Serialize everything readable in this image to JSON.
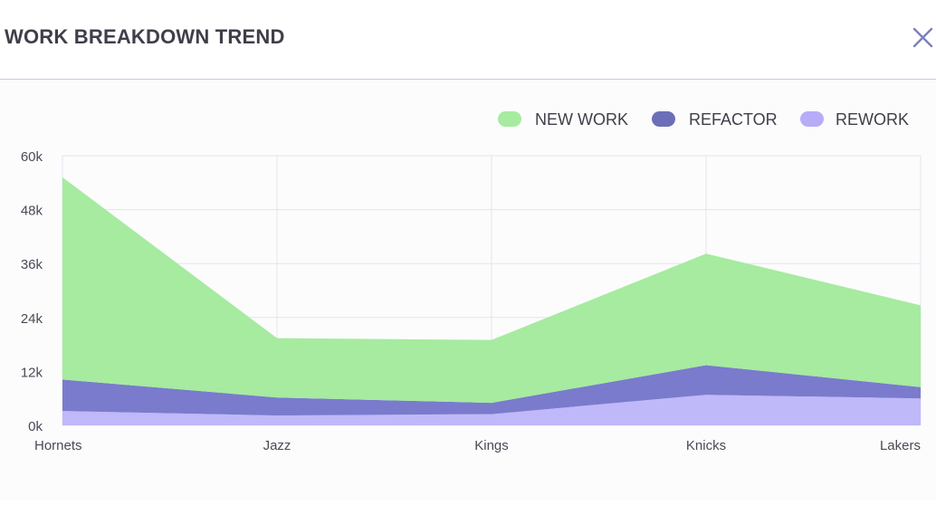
{
  "header": {
    "title": "WORK BREAKDOWN TREND",
    "close_icon": "close-icon"
  },
  "colors": {
    "new_work": "#a6eb9f",
    "refactor": "#7a7bcc",
    "rework": "#bfb8f9",
    "legend_refactor": "#6c6fb8",
    "legend_rework": "#b6acf8",
    "grid": "#e4e3ee",
    "axis_text": "#4a4a55",
    "close": "#7c80b8"
  },
  "chart_data": {
    "type": "area",
    "stacked": true,
    "categories": [
      "Hornets",
      "Jazz",
      "Kings",
      "Knicks",
      "Lakers"
    ],
    "series": [
      {
        "name": "REWORK",
        "values": [
          3200,
          2200,
          2500,
          6800,
          6000
        ]
      },
      {
        "name": "REFACTOR",
        "values": [
          7000,
          4000,
          2500,
          6600,
          2500
        ]
      },
      {
        "name": "NEW WORK",
        "values": [
          45000,
          13200,
          14000,
          24800,
          18200
        ]
      }
    ],
    "legend": [
      "NEW WORK",
      "REFACTOR",
      "REWORK"
    ],
    "legend_position": "top-right",
    "y_ticks": [
      "0k",
      "12k",
      "24k",
      "36k",
      "48k",
      "60k"
    ],
    "ylim": [
      0,
      60000
    ],
    "grid": true,
    "title": "WORK BREAKDOWN TREND",
    "xlabel": "",
    "ylabel": ""
  }
}
